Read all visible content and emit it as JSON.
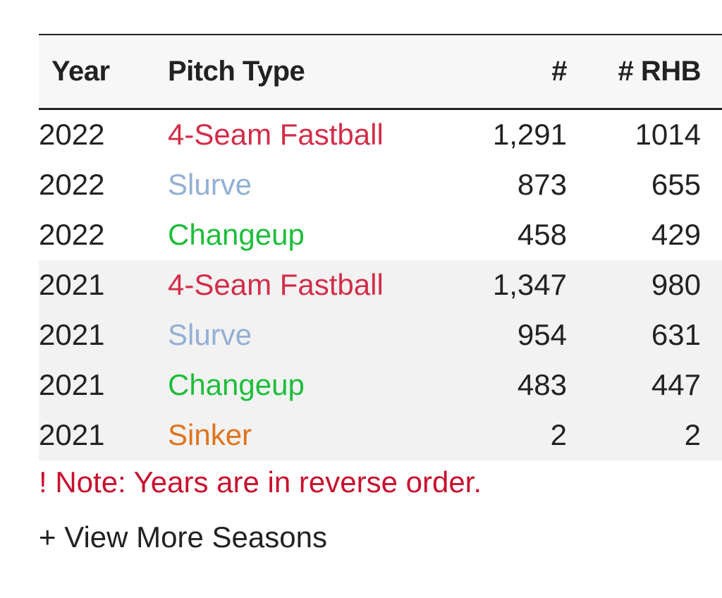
{
  "table": {
    "headers": {
      "year": "Year",
      "pitch_type": "Pitch Type",
      "count": "#",
      "rhb": "# RHB"
    },
    "pitch_colors": {
      "4-Seam Fastball": "#d22d49",
      "Slurve": "#93afd4",
      "Changeup": "#1dbe3a",
      "Sinker": "#e0731c"
    },
    "rows": [
      {
        "year": "2022",
        "pitch_type": "4-Seam Fastball",
        "count": "1,291",
        "rhb": "1014"
      },
      {
        "year": "2022",
        "pitch_type": "Slurve",
        "count": "873",
        "rhb": "655"
      },
      {
        "year": "2022",
        "pitch_type": "Changeup",
        "count": "458",
        "rhb": "429"
      },
      {
        "year": "2021",
        "pitch_type": "4-Seam Fastball",
        "count": "1,347",
        "rhb": "980"
      },
      {
        "year": "2021",
        "pitch_type": "Slurve",
        "count": "954",
        "rhb": "631"
      },
      {
        "year": "2021",
        "pitch_type": "Changeup",
        "count": "483",
        "rhb": "447"
      },
      {
        "year": "2021",
        "pitch_type": "Sinker",
        "count": "2",
        "rhb": "2"
      }
    ]
  },
  "note": "! Note: Years are in reverse order.",
  "note_color": "#c8102e",
  "view_more": "+ View More Seasons"
}
